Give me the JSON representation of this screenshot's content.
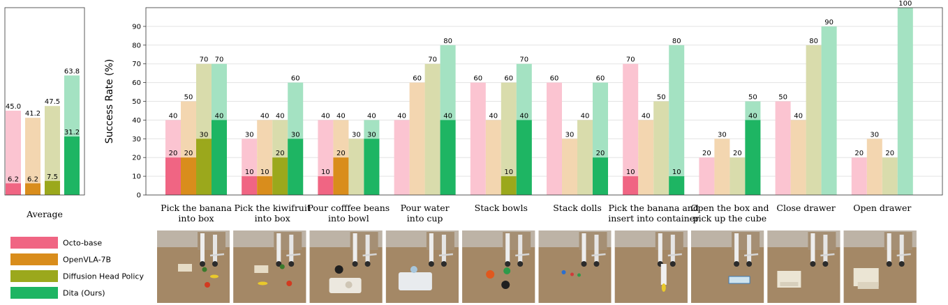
{
  "chart_data": [
    {
      "type": "bar",
      "title": "Average",
      "categories": [
        "Average"
      ],
      "series": [
        {
          "name": "Octo-base",
          "values": [
            45.0
          ],
          "inner": [
            6.2
          ]
        },
        {
          "name": "OpenVLA-7B",
          "values": [
            41.2
          ],
          "inner": [
            6.2
          ]
        },
        {
          "name": "Diffusion Head Policy",
          "values": [
            47.5
          ],
          "inner": [
            7.5
          ]
        },
        {
          "name": "Dita (Ours)",
          "values": [
            63.8
          ],
          "inner": [
            31.2
          ]
        }
      ],
      "value_labels": [
        [
          "45.0",
          "6.2"
        ],
        [
          "41.2",
          "6.2"
        ],
        [
          "47.5",
          "7.5"
        ],
        [
          "63.8",
          "31.2"
        ]
      ],
      "ylim": [
        0,
        100
      ],
      "grid": false
    },
    {
      "type": "bar",
      "ylabel": "Success Rate (%)",
      "ylim": [
        0,
        100
      ],
      "yticks": [
        0,
        10,
        20,
        30,
        40,
        50,
        60,
        70,
        80,
        90
      ],
      "grid": true,
      "categories": [
        [
          "Pick the banana",
          "into box"
        ],
        [
          "Pick the kiwifruit",
          "into box"
        ],
        [
          "Pour cofffee beans",
          "into bowl"
        ],
        [
          "Pour water",
          "into cup"
        ],
        [
          "Stack bowls"
        ],
        [
          "Stack dolls"
        ],
        [
          "Pick the banana and",
          "insert into container"
        ],
        [
          "Open the box and",
          "pick up the cube"
        ],
        [
          "Close drawer"
        ],
        [
          "Open drawer"
        ]
      ],
      "series": [
        {
          "name": "Octo-base",
          "values": [
            40,
            30,
            40,
            40,
            60,
            60,
            70,
            20,
            50,
            20
          ],
          "inner": [
            20,
            10,
            10,
            0,
            0,
            0,
            10,
            0,
            0,
            0
          ]
        },
        {
          "name": "OpenVLA-7B",
          "values": [
            50,
            40,
            40,
            60,
            40,
            30,
            40,
            30,
            40,
            30
          ],
          "inner": [
            20,
            10,
            20,
            0,
            0,
            0,
            0,
            0,
            0,
            0
          ]
        },
        {
          "name": "Diffusion Head Policy",
          "values": [
            70,
            40,
            30,
            70,
            60,
            40,
            50,
            20,
            80,
            20
          ],
          "inner": [
            30,
            20,
            0,
            0,
            10,
            0,
            0,
            0,
            0,
            0
          ]
        },
        {
          "name": "Dita (Ours)",
          "values": [
            70,
            60,
            40,
            80,
            70,
            60,
            80,
            50,
            90,
            100
          ],
          "inner": [
            40,
            30,
            30,
            40,
            40,
            20,
            10,
            40,
            0,
            0
          ]
        }
      ]
    }
  ],
  "legend": [
    {
      "label": "Octo-base",
      "color": "#f06583"
    },
    {
      "label": "OpenVLA-7B",
      "color": "#d98d1c"
    },
    {
      "label": "Diffusion Head Policy",
      "color": "#9ba81c"
    },
    {
      "label": "Dita (Ours)",
      "color": "#1eb563"
    }
  ],
  "colors": {
    "outer": [
      "#fbc4d1",
      "#f3d6b0",
      "#d9dcac",
      "#a4e2c2"
    ],
    "inner": [
      "#f06583",
      "#d98d1c",
      "#9ba81c",
      "#1eb563"
    ]
  },
  "thumbnails": [
    "robot-scene-banana-box",
    "robot-scene-kiwifruit-box",
    "robot-scene-coffee-bowl",
    "robot-scene-water-cup",
    "robot-scene-stack-bowls",
    "robot-scene-stack-dolls",
    "robot-scene-banana-container",
    "robot-scene-box-cube",
    "robot-scene-close-drawer",
    "robot-scene-open-drawer"
  ]
}
